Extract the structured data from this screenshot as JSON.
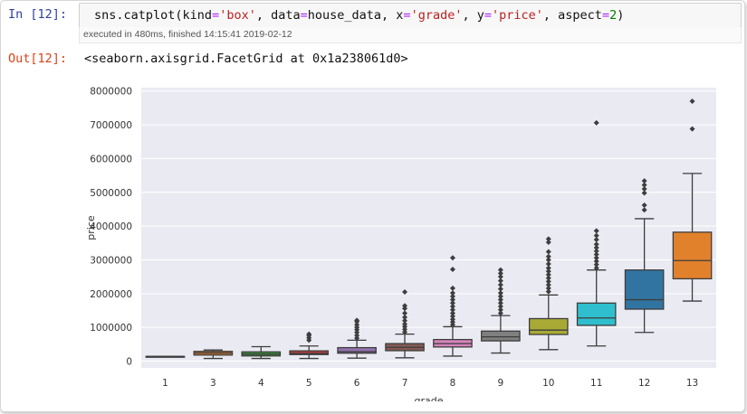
{
  "cell": {
    "in_prompt": "In [12]:",
    "code": {
      "t1": "sns.catplot(kind",
      "t2": "=",
      "t3": "'box'",
      "t4": ", data",
      "t5": "=",
      "t6": "house_data, x",
      "t7": "=",
      "t8": "'grade'",
      "t9": ", y",
      "t10": "=",
      "t11": "'price'",
      "t12": ", aspect",
      "t13": "=",
      "t14": "2",
      "t15": ")"
    },
    "exec_info": "executed in 480ms, finished 14:15:41 2019-02-12",
    "out_prompt": "Out[12]:",
    "out_text": "<seaborn.axisgrid.FacetGrid at 0x1a238061d0>"
  },
  "chart_data": {
    "type": "box",
    "title": "",
    "xlabel": "grade",
    "ylabel": "price",
    "ylim": [
      -200000,
      8100000
    ],
    "yticks": [
      0,
      1000000,
      2000000,
      3000000,
      4000000,
      5000000,
      6000000,
      7000000,
      8000000
    ],
    "ytick_labels": [
      "0",
      "1000000",
      "2000000",
      "3000000",
      "4000000",
      "5000000",
      "6000000",
      "7000000",
      "8000000"
    ],
    "grid": true,
    "background": "#eaeaf2",
    "categories": [
      "1",
      "3",
      "4",
      "5",
      "6",
      "7",
      "8",
      "9",
      "10",
      "11",
      "12",
      "13"
    ],
    "boxes": [
      {
        "grade": "1",
        "color": "#3274a1",
        "q1": 142000,
        "median": 142000,
        "q3": 142000,
        "whislo": 142000,
        "whishi": 142000,
        "fliers": []
      },
      {
        "grade": "3",
        "color": "#e1812c",
        "q1": 180000,
        "median": 240000,
        "q3": 290000,
        "whislo": 80000,
        "whishi": 330000,
        "fliers": []
      },
      {
        "grade": "4",
        "color": "#3a923a",
        "q1": 155000,
        "median": 210000,
        "q3": 275000,
        "whislo": 80000,
        "whishi": 430000,
        "fliers": []
      },
      {
        "grade": "5",
        "color": "#c03d3e",
        "q1": 195000,
        "median": 230000,
        "q3": 305000,
        "whislo": 80000,
        "whishi": 450000,
        "fliers": [
          620000,
          690000,
          760000,
          800000
        ]
      },
      {
        "grade": "6",
        "color": "#9372b2",
        "q1": 235000,
        "median": 280000,
        "q3": 400000,
        "whislo": 90000,
        "whishi": 620000,
        "fliers": [
          680000,
          760000,
          850000,
          930000,
          1000000,
          1080000,
          1170000,
          1210000
        ]
      },
      {
        "grade": "7",
        "color": "#845b53",
        "q1": 310000,
        "median": 410000,
        "q3": 520000,
        "whislo": 100000,
        "whishi": 800000,
        "fliers": [
          860000,
          940000,
          1020000,
          1100000,
          1200000,
          1300000,
          1420000,
          1560000,
          1640000,
          2050000
        ]
      },
      {
        "grade": "8",
        "color": "#d684bd",
        "q1": 420000,
        "median": 520000,
        "q3": 640000,
        "whislo": 150000,
        "whishi": 1020000,
        "fliers": [
          1080000,
          1160000,
          1240000,
          1330000,
          1420000,
          1520000,
          1620000,
          1720000,
          1820000,
          1920000,
          2020000,
          2160000,
          2720000,
          3060000
        ]
      },
      {
        "grade": "9",
        "color": "#7f7f7f",
        "q1": 600000,
        "median": 720000,
        "q3": 890000,
        "whislo": 240000,
        "whishi": 1350000,
        "fliers": [
          1420000,
          1520000,
          1620000,
          1720000,
          1820000,
          1920000,
          2020000,
          2140000,
          2260000,
          2380000,
          2500000,
          2600000,
          2700000
        ]
      },
      {
        "grade": "10",
        "color": "#a9aa35",
        "q1": 790000,
        "median": 920000,
        "q3": 1260000,
        "whislo": 340000,
        "whishi": 1960000,
        "fliers": [
          2060000,
          2160000,
          2260000,
          2360000,
          2460000,
          2560000,
          2660000,
          2760000,
          2880000,
          3000000,
          3100000,
          3240000,
          3520000,
          3620000
        ]
      },
      {
        "grade": "11",
        "color": "#2ebece",
        "q1": 1060000,
        "median": 1280000,
        "q3": 1720000,
        "whislo": 450000,
        "whishi": 2700000,
        "fliers": [
          2760000,
          2860000,
          2960000,
          3060000,
          3160000,
          3260000,
          3360000,
          3460000,
          3600000,
          3720000,
          3860000,
          7060000
        ]
      },
      {
        "grade": "12",
        "color": "#3274a1",
        "q1": 1540000,
        "median": 1820000,
        "q3": 2700000,
        "whislo": 850000,
        "whishi": 4220000,
        "fliers": [
          4480000,
          4620000,
          4980000,
          5100000,
          5220000,
          5340000
        ]
      },
      {
        "grade": "13",
        "color": "#e1812c",
        "q1": 2440000,
        "median": 2980000,
        "q3": 3820000,
        "whislo": 1780000,
        "whishi": 5560000,
        "fliers": [
          6880000,
          7700000
        ]
      }
    ]
  }
}
